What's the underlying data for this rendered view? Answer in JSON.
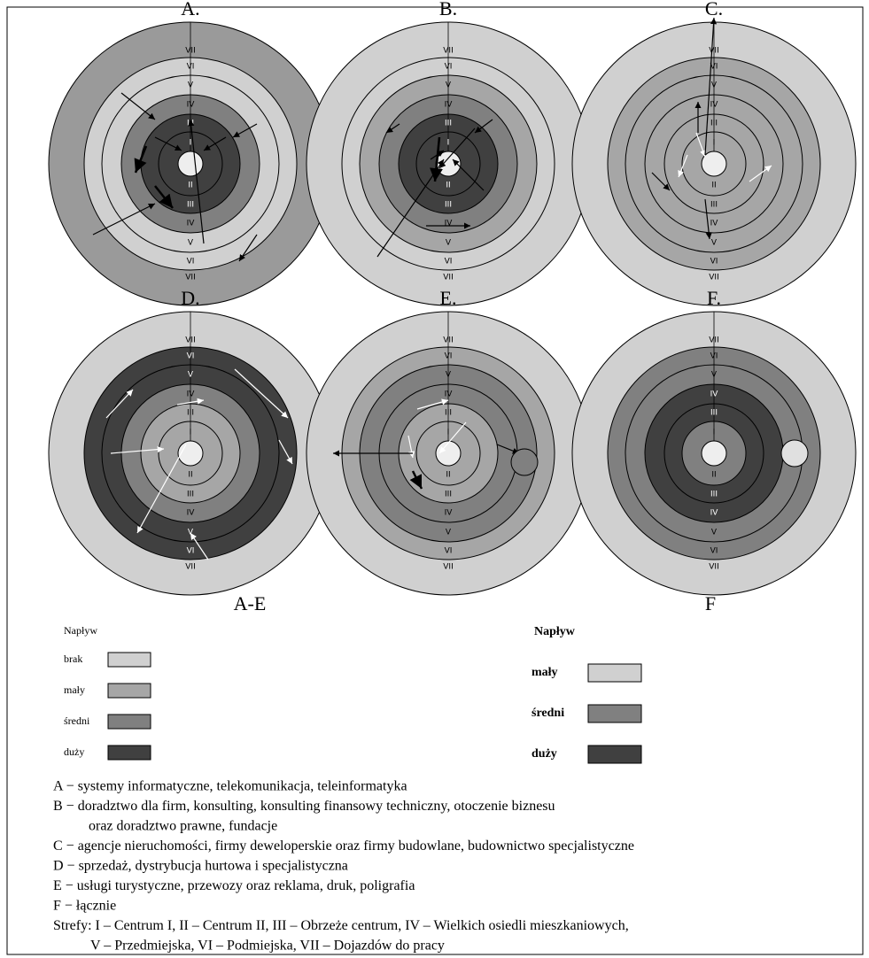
{
  "panels": [
    {
      "title": "A.",
      "rings": [
        "#404040",
        "#404040",
        "#808080",
        "#d0d0d0",
        "#d0d0d0",
        "#9a9a9a"
      ]
    },
    {
      "title": "B.",
      "rings": [
        "#404040",
        "#404040",
        "#808080",
        "#a6a6a6",
        "#d0d0d0",
        "#d0d0d0"
      ]
    },
    {
      "title": "C.",
      "rings": [
        "#a6a6a6",
        "#a6a6a6",
        "#a6a6a6",
        "#a6a6a6",
        "#a6a6a6",
        "#d0d0d0"
      ]
    },
    {
      "title": "D.",
      "rings": [
        "#a6a6a6",
        "#a6a6a6",
        "#808080",
        "#404040",
        "#404040",
        "#d0d0d0"
      ]
    },
    {
      "title": "E.",
      "rings": [
        "#a6a6a6",
        "#a6a6a6",
        "#808080",
        "#808080",
        "#a6a6a6",
        "#d0d0d0"
      ]
    },
    {
      "title": "F.",
      "rings": [
        "#808080",
        "#404040",
        "#404040",
        "#808080",
        "#808080",
        "#d0d0d0"
      ]
    }
  ],
  "zone_labels": {
    "top": [
      "I",
      "III",
      "IV",
      "V",
      "VI",
      "VII"
    ],
    "bottom": [
      "II",
      "III",
      "IV",
      "V",
      "VI",
      "VII"
    ]
  },
  "group_labels": [
    "A-E",
    "F"
  ],
  "legends": [
    {
      "title": "Napływ",
      "items": [
        {
          "label": "brak",
          "color": "#d0d0d0"
        },
        {
          "label": "mały",
          "color": "#a6a6a6"
        },
        {
          "label": "średni",
          "color": "#808080"
        },
        {
          "label": "duży",
          "color": "#404040"
        }
      ]
    },
    {
      "title": "Napływ",
      "items": [
        {
          "label": "mały",
          "color": "#d0d0d0"
        },
        {
          "label": "średni",
          "color": "#808080"
        },
        {
          "label": "duży",
          "color": "#404040"
        }
      ]
    }
  ],
  "notes": [
    "A − systemy informatyczne, telekomunikacja, teleinformatyka",
    "B − doradztwo dla firm, konsulting, konsulting finansowy techniczny, otoczenie biznesu",
    "oraz doradztwo prawne, fundacje",
    "C − agencje nieruchomości, firmy deweloperskie oraz firmy budowlane, budownictwo specjalistyczne",
    "D − sprzedaż, dystrybucja hurtowa i specjalistyczna",
    "E − usługi turystyczne, przewozy oraz reklama, druk, poligrafia",
    "F − łącznie",
    "Strefy:  I – Centrum I, II – Centrum II, III – Obrzeże centrum, IV – Wielkich osiedli mieszkaniowych,",
    "V – Przedmiejska, VI – Podmiejska, VII – Dojazdów do pracy"
  ]
}
